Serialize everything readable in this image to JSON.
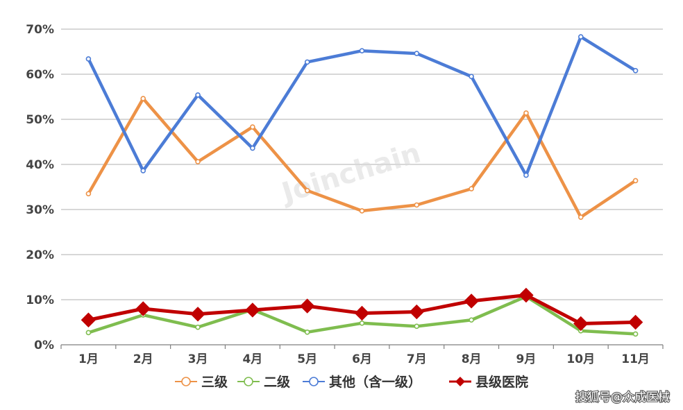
{
  "chart_data": {
    "type": "line",
    "categories": [
      "1月",
      "2月",
      "3月",
      "4月",
      "5月",
      "6月",
      "7月",
      "8月",
      "9月",
      "10月",
      "11月"
    ],
    "ylim": [
      0,
      70
    ],
    "yticks": [
      0,
      10,
      20,
      30,
      40,
      50,
      60,
      70
    ],
    "y_tick_labels": [
      "0%",
      "10%",
      "20%",
      "30%",
      "40%",
      "50%",
      "60%",
      "70%"
    ],
    "grid": "horizontal",
    "legend_position": "bottom",
    "series": [
      {
        "name": "三级",
        "color": "#ed9247",
        "marker": "circle",
        "values": [
          33.5,
          54.6,
          40.6,
          48.3,
          34.2,
          29.7,
          31.0,
          34.6,
          51.4,
          28.3,
          36.4
        ]
      },
      {
        "name": "二级",
        "color": "#7fbd4f",
        "marker": "circle",
        "values": [
          2.7,
          6.6,
          3.9,
          7.8,
          2.8,
          4.8,
          4.1,
          5.5,
          10.7,
          3.1,
          2.4
        ]
      },
      {
        "name": "其他（含一级）",
        "color": "#4c7cd6",
        "marker": "circle",
        "values": [
          63.4,
          38.6,
          55.4,
          43.6,
          62.7,
          65.2,
          64.6,
          59.5,
          37.6,
          68.3,
          60.8
        ]
      },
      {
        "name": "县级医院",
        "color": "#c00000",
        "marker": "diamond",
        "values": [
          5.5,
          8.0,
          6.8,
          7.7,
          8.6,
          7.0,
          7.3,
          9.7,
          11.0,
          4.7,
          5.0
        ]
      }
    ]
  },
  "watermark": "Joinchain",
  "credit": "搜狐号@众成医械"
}
